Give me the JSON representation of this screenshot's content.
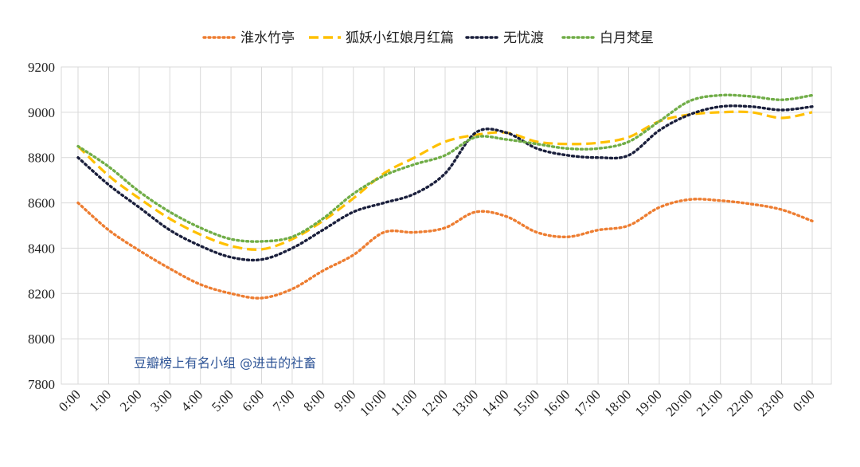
{
  "chart_data": {
    "type": "line",
    "x": [
      "0:00",
      "1:00",
      "2:00",
      "3:00",
      "4:00",
      "5:00",
      "6:00",
      "7:00",
      "8:00",
      "9:00",
      "10:00",
      "11:00",
      "12:00",
      "13:00",
      "14:00",
      "15:00",
      "16:00",
      "17:00",
      "18:00",
      "19:00",
      "20:00",
      "21:00",
      "22:00",
      "23:00",
      "0:00"
    ],
    "ylim": [
      7800,
      9200
    ],
    "yticks": [
      7800,
      8000,
      8200,
      8400,
      8600,
      8800,
      9000,
      9200
    ],
    "grid": true,
    "legend_position": "top",
    "annotation": "豆瓣榜上有名小组 @进击的社畜",
    "series": [
      {
        "name": "淮水竹亭",
        "color": "#ed7d31",
        "dash": "2,4",
        "values": [
          8600,
          8480,
          8390,
          8310,
          8240,
          8200,
          8180,
          8220,
          8300,
          8370,
          8470,
          8470,
          8490,
          8560,
          8540,
          8470,
          8450,
          8480,
          8500,
          8580,
          8615,
          8610,
          8595,
          8570,
          8520
        ]
      },
      {
        "name": "狐妖小红娘月红篇",
        "color": "#ffc000",
        "dash": "12,6",
        "values": [
          8850,
          8720,
          8620,
          8530,
          8460,
          8410,
          8395,
          8440,
          8520,
          8620,
          8730,
          8800,
          8870,
          8900,
          8910,
          8870,
          8860,
          8865,
          8890,
          8960,
          8990,
          9000,
          9000,
          8975,
          9000
        ]
      },
      {
        "name": "无忧渡",
        "color": "#1a1f3c",
        "dash": "2,4",
        "values": [
          8800,
          8680,
          8580,
          8480,
          8410,
          8360,
          8350,
          8400,
          8480,
          8560,
          8600,
          8640,
          8730,
          8910,
          8910,
          8840,
          8810,
          8800,
          8810,
          8920,
          8990,
          9025,
          9025,
          9010,
          9025
        ]
      },
      {
        "name": "白月梵星",
        "color": "#70ad47",
        "dash": "2,4",
        "values": [
          8850,
          8760,
          8650,
          8560,
          8490,
          8440,
          8430,
          8450,
          8530,
          8640,
          8720,
          8770,
          8810,
          8890,
          8880,
          8860,
          8840,
          8840,
          8870,
          8960,
          9050,
          9075,
          9070,
          9055,
          9075
        ]
      }
    ]
  }
}
